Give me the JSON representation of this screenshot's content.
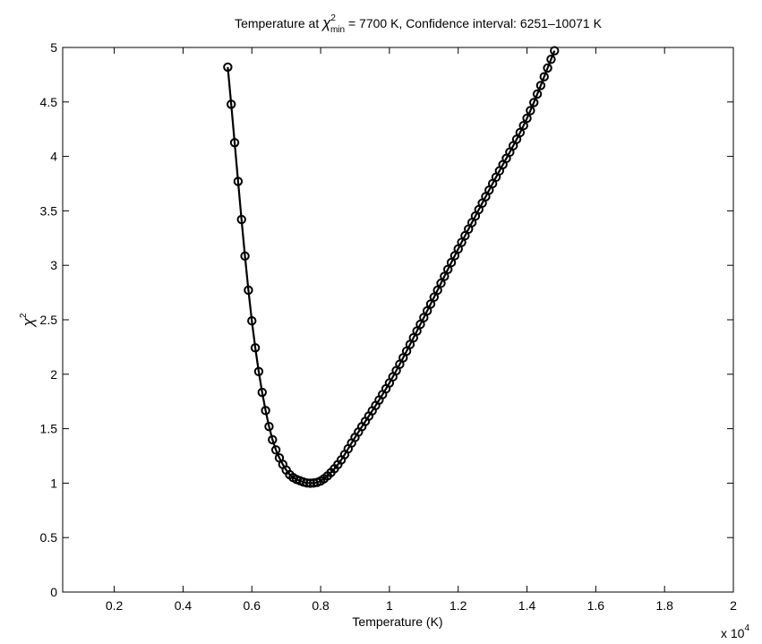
{
  "chart_data": {
    "type": "line",
    "title": {
      "prefix": "Temperature at ",
      "symbol": "χ",
      "superscript": "2",
      "subscript": "min",
      "suffix": " = 7700 K, Confidence interval: 6251–10071 K"
    },
    "xlabel": "Temperature (K)",
    "ylabel": {
      "symbol": "χ",
      "superscript": "2"
    },
    "x_multiplier": {
      "text": "x 10",
      "exponent": "4"
    },
    "xlim": [
      0.05,
      2.0
    ],
    "ylim": [
      0,
      5
    ],
    "x_ticks": [
      0.2,
      0.4,
      0.6,
      0.8,
      1,
      1.2,
      1.4,
      1.6,
      1.8,
      2
    ],
    "y_ticks": [
      0,
      0.5,
      1,
      1.5,
      2,
      2.5,
      3,
      3.5,
      4,
      4.5,
      5
    ],
    "grid": false,
    "line_color": "#000000",
    "marker": "circle",
    "x_start": 0.5,
    "x_end": 1.5,
    "x_step": 0.01,
    "series": [
      {
        "x_points": [
          0.53,
          0.6,
          0.65,
          0.7,
          0.75,
          0.77,
          0.8,
          0.85,
          0.9,
          1.0,
          1.1,
          1.2,
          1.3,
          1.4,
          1.48
        ],
        "y_points": [
          4.82,
          2.49,
          1.52,
          1.12,
          1.01,
          1.0,
          1.02,
          1.17,
          1.42,
          1.92,
          2.52,
          3.15,
          3.75,
          4.35,
          4.97
        ]
      }
    ]
  }
}
